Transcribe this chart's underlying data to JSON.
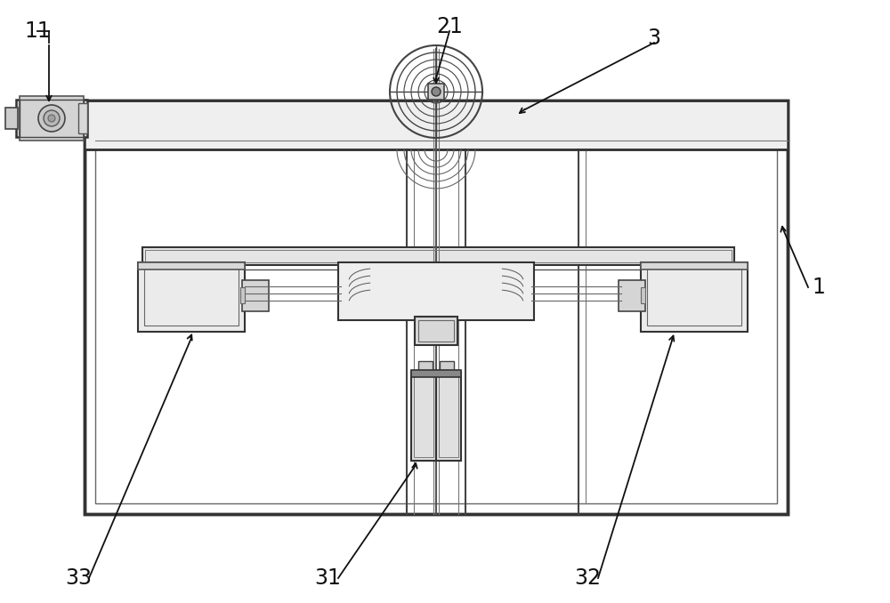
{
  "bg_color": "#ffffff",
  "line_color": "#4a4a4a",
  "line_color_dark": "#222222",
  "figsize": [
    10.0,
    6.78
  ],
  "dpi": 100
}
